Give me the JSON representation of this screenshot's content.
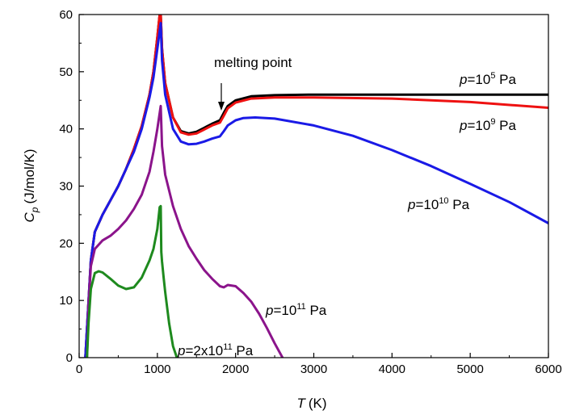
{
  "chart_data": {
    "type": "line",
    "xlabel": {
      "symbol": "T",
      "unit": "(K)"
    },
    "ylabel": {
      "symbol": "C",
      "subscript": "p",
      "unit": "(J/mol/K)"
    },
    "xlim": [
      0,
      6000
    ],
    "ylim": [
      0,
      60
    ],
    "xticks": [
      0,
      1000,
      2000,
      3000,
      4000,
      5000,
      6000
    ],
    "yticks": [
      0,
      10,
      20,
      30,
      40,
      50,
      60
    ],
    "grid": false,
    "annotation": {
      "text": "melting point",
      "x": 1800,
      "y": 41
    },
    "series": [
      {
        "label": {
          "prefix": "p",
          "mid": "=10",
          "sup": "5",
          "suffix": " Pa"
        },
        "color": "#000000",
        "x": [
          80,
          100,
          150,
          200,
          300,
          400,
          500,
          600,
          700,
          800,
          900,
          950,
          1000,
          1030,
          1043,
          1060,
          1100,
          1200,
          1300,
          1400,
          1500,
          1600,
          1700,
          1800,
          1850,
          1900,
          2000,
          2200,
          2500,
          3000,
          4000,
          5000,
          6000
        ],
        "y": [
          0,
          5,
          17,
          22,
          25,
          27.5,
          30,
          33,
          36.5,
          40.5,
          46,
          50,
          56,
          60,
          60,
          54,
          48,
          42,
          39.6,
          39.2,
          39.5,
          40.2,
          40.9,
          41.5,
          42.8,
          44,
          45,
          45.7,
          45.9,
          46,
          46,
          46,
          46
        ]
      },
      {
        "label": {
          "prefix": "p",
          "mid": "=10",
          "sup": "9",
          "suffix": " Pa"
        },
        "color": "#ee1111",
        "x": [
          80,
          100,
          150,
          200,
          300,
          400,
          500,
          600,
          700,
          800,
          900,
          950,
          1000,
          1030,
          1043,
          1060,
          1100,
          1200,
          1300,
          1400,
          1500,
          1600,
          1700,
          1800,
          1850,
          1900,
          2000,
          2200,
          2500,
          3000,
          4000,
          5000,
          6000
        ],
        "y": [
          0,
          5,
          17,
          22,
          25,
          27.5,
          30,
          33,
          36.5,
          40.5,
          46,
          50,
          56,
          60,
          60,
          54,
          48,
          42,
          39.4,
          39,
          39.2,
          39.9,
          40.6,
          41.1,
          42.3,
          43.6,
          44.6,
          45.3,
          45.5,
          45.5,
          45.3,
          44.7,
          43.7
        ]
      },
      {
        "label": {
          "prefix": "p",
          "mid": "=10",
          "sup": "10",
          "suffix": " Pa"
        },
        "color": "#1a1ae6",
        "x": [
          80,
          100,
          150,
          200,
          300,
          400,
          500,
          600,
          700,
          800,
          900,
          950,
          1000,
          1043,
          1060,
          1100,
          1200,
          1300,
          1400,
          1500,
          1600,
          1700,
          1800,
          1850,
          1900,
          2000,
          2100,
          2250,
          2500,
          3000,
          3500,
          4000,
          4500,
          5000,
          5500,
          6000
        ],
        "y": [
          0,
          5,
          17,
          22,
          25,
          27.5,
          30,
          33,
          36,
          40,
          45.5,
          49,
          54,
          58.5,
          52,
          46,
          40,
          37.8,
          37.3,
          37.4,
          37.8,
          38.3,
          38.7,
          39.6,
          40.6,
          41.5,
          41.9,
          42,
          41.8,
          40.6,
          38.8,
          36.3,
          33.5,
          30.4,
          27.2,
          23.5
        ]
      },
      {
        "label": {
          "prefix": "p",
          "mid": "=10",
          "sup": "11",
          "suffix": " Pa"
        },
        "color": "#8b148b",
        "x": [
          100,
          120,
          150,
          200,
          300,
          400,
          500,
          600,
          700,
          800,
          900,
          950,
          1000,
          1043,
          1060,
          1100,
          1200,
          1300,
          1400,
          1500,
          1600,
          1700,
          1800,
          1850,
          1900,
          2000,
          2100,
          2200,
          2300,
          2400,
          2500,
          2600
        ],
        "y": [
          0,
          9,
          16,
          19,
          20.5,
          21.3,
          22.5,
          24,
          26,
          28.5,
          32.5,
          36,
          40,
          44,
          37,
          32,
          26.5,
          22.5,
          19.5,
          17.3,
          15.3,
          13.8,
          12.5,
          12.3,
          12.7,
          12.5,
          11.3,
          9.8,
          7.7,
          5.2,
          2.5,
          0
        ]
      },
      {
        "label": {
          "prefix": "p",
          "mid": "=2x10",
          "sup": "11",
          "suffix": " Pa"
        },
        "color": "#1e8a1e",
        "x": [
          100,
          120,
          150,
          200,
          250,
          300,
          400,
          500,
          600,
          700,
          800,
          900,
          950,
          1000,
          1030,
          1043,
          1050,
          1060,
          1080,
          1100,
          1150,
          1200,
          1250
        ],
        "y": [
          0,
          6,
          12,
          14.8,
          15.1,
          14.9,
          13.8,
          12.6,
          12,
          12.3,
          14,
          17,
          19,
          22.5,
          26.3,
          26.5,
          18.5,
          16.8,
          14,
          11.5,
          6,
          2,
          0
        ]
      }
    ]
  }
}
